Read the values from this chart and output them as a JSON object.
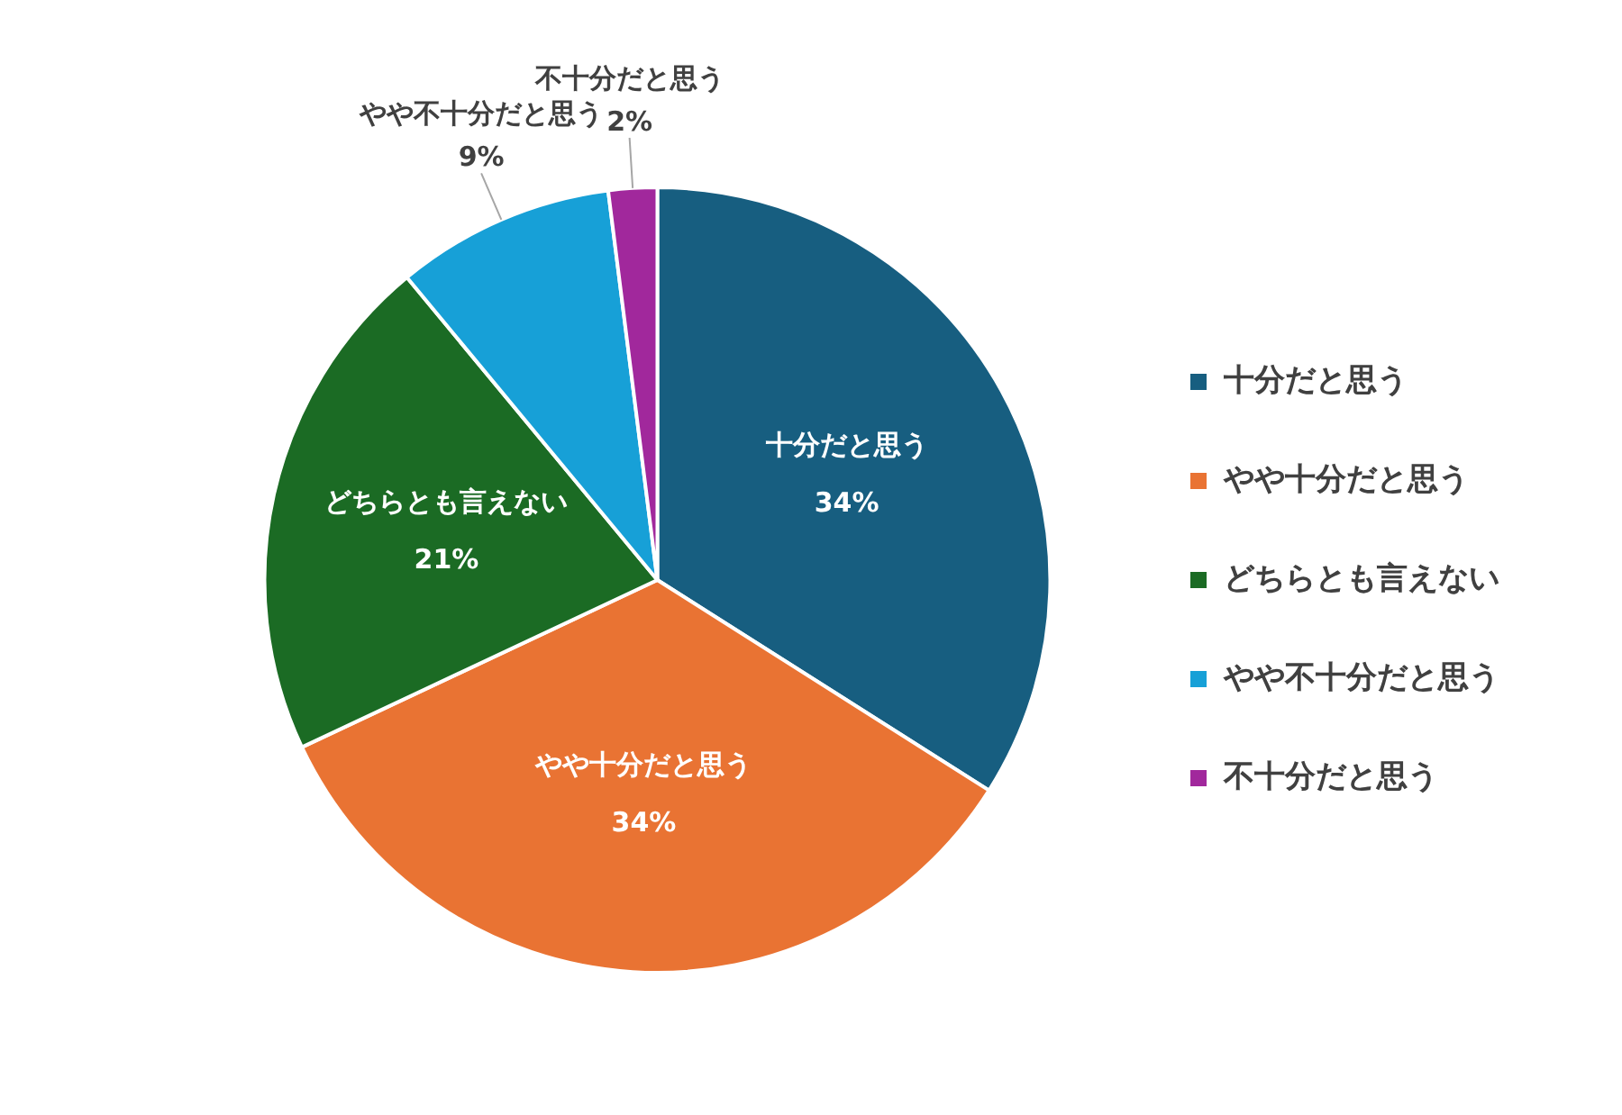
{
  "chart_data": {
    "type": "pie",
    "categories": [
      "十分だと思う",
      "やや十分だと思う",
      "どちらとも言えない",
      "やや不十分だと思う",
      "不十分だと思う"
    ],
    "values": [
      34,
      34,
      21,
      9,
      2
    ],
    "value_labels": [
      "34%",
      "34%",
      "21%",
      "9%",
      "2%"
    ],
    "colors": [
      "#175e80",
      "#e97333",
      "#1b6b24",
      "#17a0d7",
      "#a1289c"
    ],
    "legend": "right"
  }
}
